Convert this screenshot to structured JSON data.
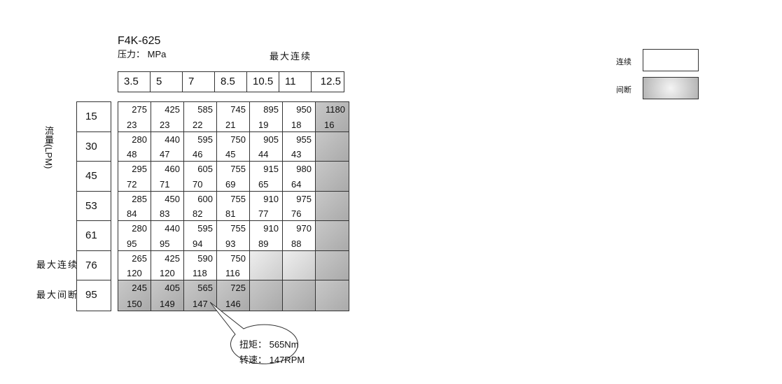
{
  "model": "F4K-625",
  "pressure_label": "压力： MPa",
  "max_continuous_label": "最大连续",
  "pressures": [
    "3.5",
    "5",
    "7",
    "8.5",
    "10.5",
    "11",
    "12.5"
  ],
  "flow_label": "流量(LPM)",
  "flows": [
    "15",
    "30",
    "45",
    "53",
    "61",
    "76",
    "95"
  ],
  "row_labels": {
    "max_continuous": "最大连续",
    "max_intermittent": "最大间断"
  },
  "table": [
    [
      [
        "275",
        "23"
      ],
      [
        "425",
        "23"
      ],
      [
        "585",
        "22"
      ],
      [
        "745",
        "21"
      ],
      [
        "895",
        "19"
      ],
      [
        "950",
        "18"
      ],
      [
        "1180",
        "16"
      ]
    ],
    [
      [
        "280",
        "48"
      ],
      [
        "440",
        "47"
      ],
      [
        "595",
        "46"
      ],
      [
        "750",
        "45"
      ],
      [
        "905",
        "44"
      ],
      [
        "955",
        "43"
      ],
      [
        "",
        ""
      ]
    ],
    [
      [
        "295",
        "72"
      ],
      [
        "460",
        "71"
      ],
      [
        "605",
        "70"
      ],
      [
        "755",
        "69"
      ],
      [
        "915",
        "65"
      ],
      [
        "980",
        "64"
      ],
      [
        "",
        ""
      ]
    ],
    [
      [
        "285",
        "84"
      ],
      [
        "450",
        "83"
      ],
      [
        "600",
        "82"
      ],
      [
        "755",
        "81"
      ],
      [
        "910",
        "77"
      ],
      [
        "975",
        "76"
      ],
      [
        "",
        ""
      ]
    ],
    [
      [
        "280",
        "95"
      ],
      [
        "440",
        "95"
      ],
      [
        "595",
        "94"
      ],
      [
        "755",
        "93"
      ],
      [
        "910",
        "89"
      ],
      [
        "970",
        "88"
      ],
      [
        "",
        ""
      ]
    ],
    [
      [
        "265",
        "120"
      ],
      [
        "425",
        "120"
      ],
      [
        "590",
        "118"
      ],
      [
        "750",
        "116"
      ],
      [
        "",
        ""
      ],
      [
        "",
        ""
      ],
      [
        "",
        ""
      ]
    ],
    [
      [
        "245",
        "150"
      ],
      [
        "405",
        "149"
      ],
      [
        "565",
        "147"
      ],
      [
        "725",
        "146"
      ],
      [
        "",
        ""
      ],
      [
        "",
        ""
      ],
      [
        "",
        ""
      ]
    ]
  ],
  "callout": {
    "torque": "扭矩： 565Nm",
    "speed": "转速： 147RPM"
  },
  "legend": {
    "continuous": "连续",
    "intermittent": "间断"
  },
  "colors": {
    "intermittent": "#b4b4b4",
    "continuous": "#ffffff"
  }
}
